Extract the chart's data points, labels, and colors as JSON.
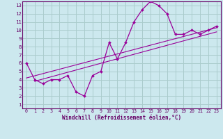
{
  "x": [
    0,
    1,
    2,
    3,
    4,
    5,
    6,
    7,
    8,
    9,
    10,
    11,
    12,
    13,
    14,
    15,
    16,
    17,
    18,
    19,
    20,
    21,
    22,
    23
  ],
  "y_curve": [
    6,
    4,
    3.5,
    4,
    4,
    4.5,
    2.5,
    2,
    4.5,
    5,
    8.5,
    6.5,
    8.5,
    11,
    12.5,
    13.5,
    13,
    12,
    9.5,
    9.5,
    10,
    9.5,
    10,
    10.5
  ],
  "trend1_x": [
    0,
    23
  ],
  "trend1_y": [
    4.2,
    10.3
  ],
  "trend2_x": [
    1,
    23
  ],
  "trend2_y": [
    3.8,
    9.8
  ],
  "line_color": "#990099",
  "bg_color": "#cce8ee",
  "grid_color": "#aacccc",
  "axis_color": "#660066",
  "xlabel": "Windchill (Refroidissement éolien,°C)",
  "xlim": [
    -0.5,
    23.5
  ],
  "ylim": [
    0.5,
    13.5
  ],
  "xticks": [
    0,
    1,
    2,
    3,
    4,
    5,
    6,
    7,
    8,
    9,
    10,
    11,
    12,
    13,
    14,
    15,
    16,
    17,
    18,
    19,
    20,
    21,
    22,
    23
  ],
  "yticks": [
    1,
    2,
    3,
    4,
    5,
    6,
    7,
    8,
    9,
    10,
    11,
    12,
    13
  ]
}
